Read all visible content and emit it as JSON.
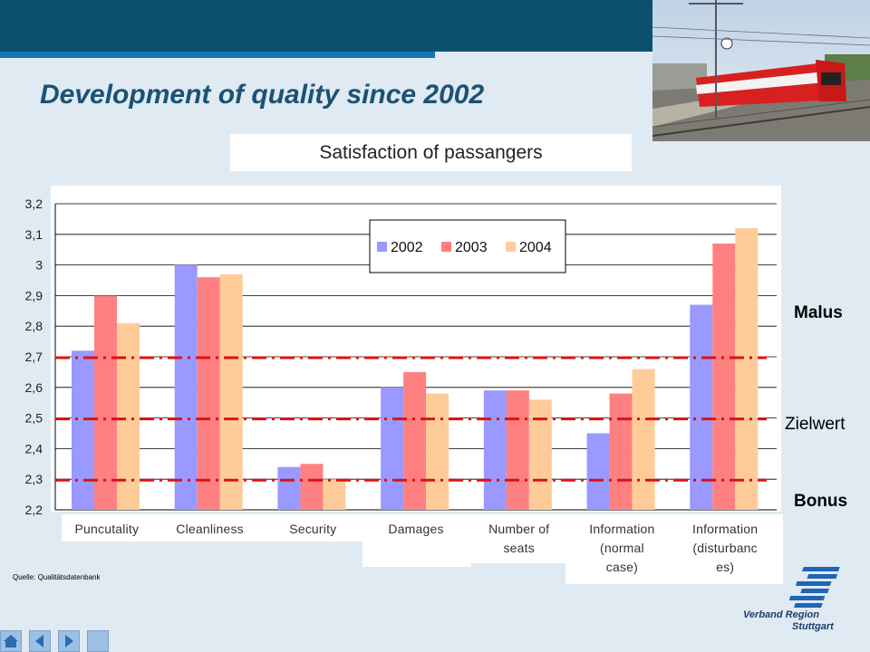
{
  "slide": {
    "title": "Development of quality since 2002",
    "subtitle": "Satisfaction of passangers",
    "source": "Quelle: Qualitätsdatenbank",
    "brand": {
      "line1": "Verband Region",
      "line2": "Stuttgart"
    },
    "thresholds": [
      {
        "label": "Malus",
        "value": 2.7
      },
      {
        "label": "Zielwert",
        "value": 2.5
      },
      {
        "label": "Bonus",
        "value": 2.3
      }
    ],
    "nav": {
      "home_icon": "home-icon",
      "prev_icon": "arrow-left-icon",
      "next_icon": "arrow-right-icon"
    },
    "colors": {
      "header": "#0c5070",
      "accent": "#1676b5",
      "title": "#1b5274",
      "threshold_line": "#e01010"
    }
  },
  "chart_data": {
    "type": "bar",
    "title": "Satisfaction of passangers",
    "categories": [
      "Puncutality",
      "Cleanliness",
      "Security",
      "Damages",
      "Number of seats",
      "Information (normal case)",
      "Information (disturbances)"
    ],
    "category_label_lines": [
      [
        "Puncutality"
      ],
      [
        "Cleanliness"
      ],
      [
        "Security"
      ],
      [
        "Damages"
      ],
      [
        "Number of",
        "seats"
      ],
      [
        "Information",
        "(normal",
        "case)"
      ],
      [
        "Information",
        "(disturbanc",
        "es)"
      ]
    ],
    "series": [
      {
        "name": "2002",
        "color": "#9999ff",
        "values": [
          2.72,
          3.0,
          2.34,
          2.6,
          2.59,
          2.45,
          2.87
        ]
      },
      {
        "name": "2003",
        "color": "#ff8080",
        "values": [
          2.9,
          2.96,
          2.35,
          2.65,
          2.59,
          2.58,
          3.07
        ]
      },
      {
        "name": "2004",
        "color": "#ffcc99",
        "values": [
          2.81,
          2.97,
          2.3,
          2.58,
          2.56,
          2.66,
          3.12
        ]
      }
    ],
    "ylim": [
      2.2,
      3.2
    ],
    "yticks": [
      "2,2",
      "2,3",
      "2,4",
      "2,5",
      "2,6",
      "2,7",
      "2,8",
      "2,9",
      "3",
      "3,1",
      "3,2"
    ],
    "grid": true,
    "legend": "top-center",
    "xlabel": "",
    "ylabel": ""
  }
}
